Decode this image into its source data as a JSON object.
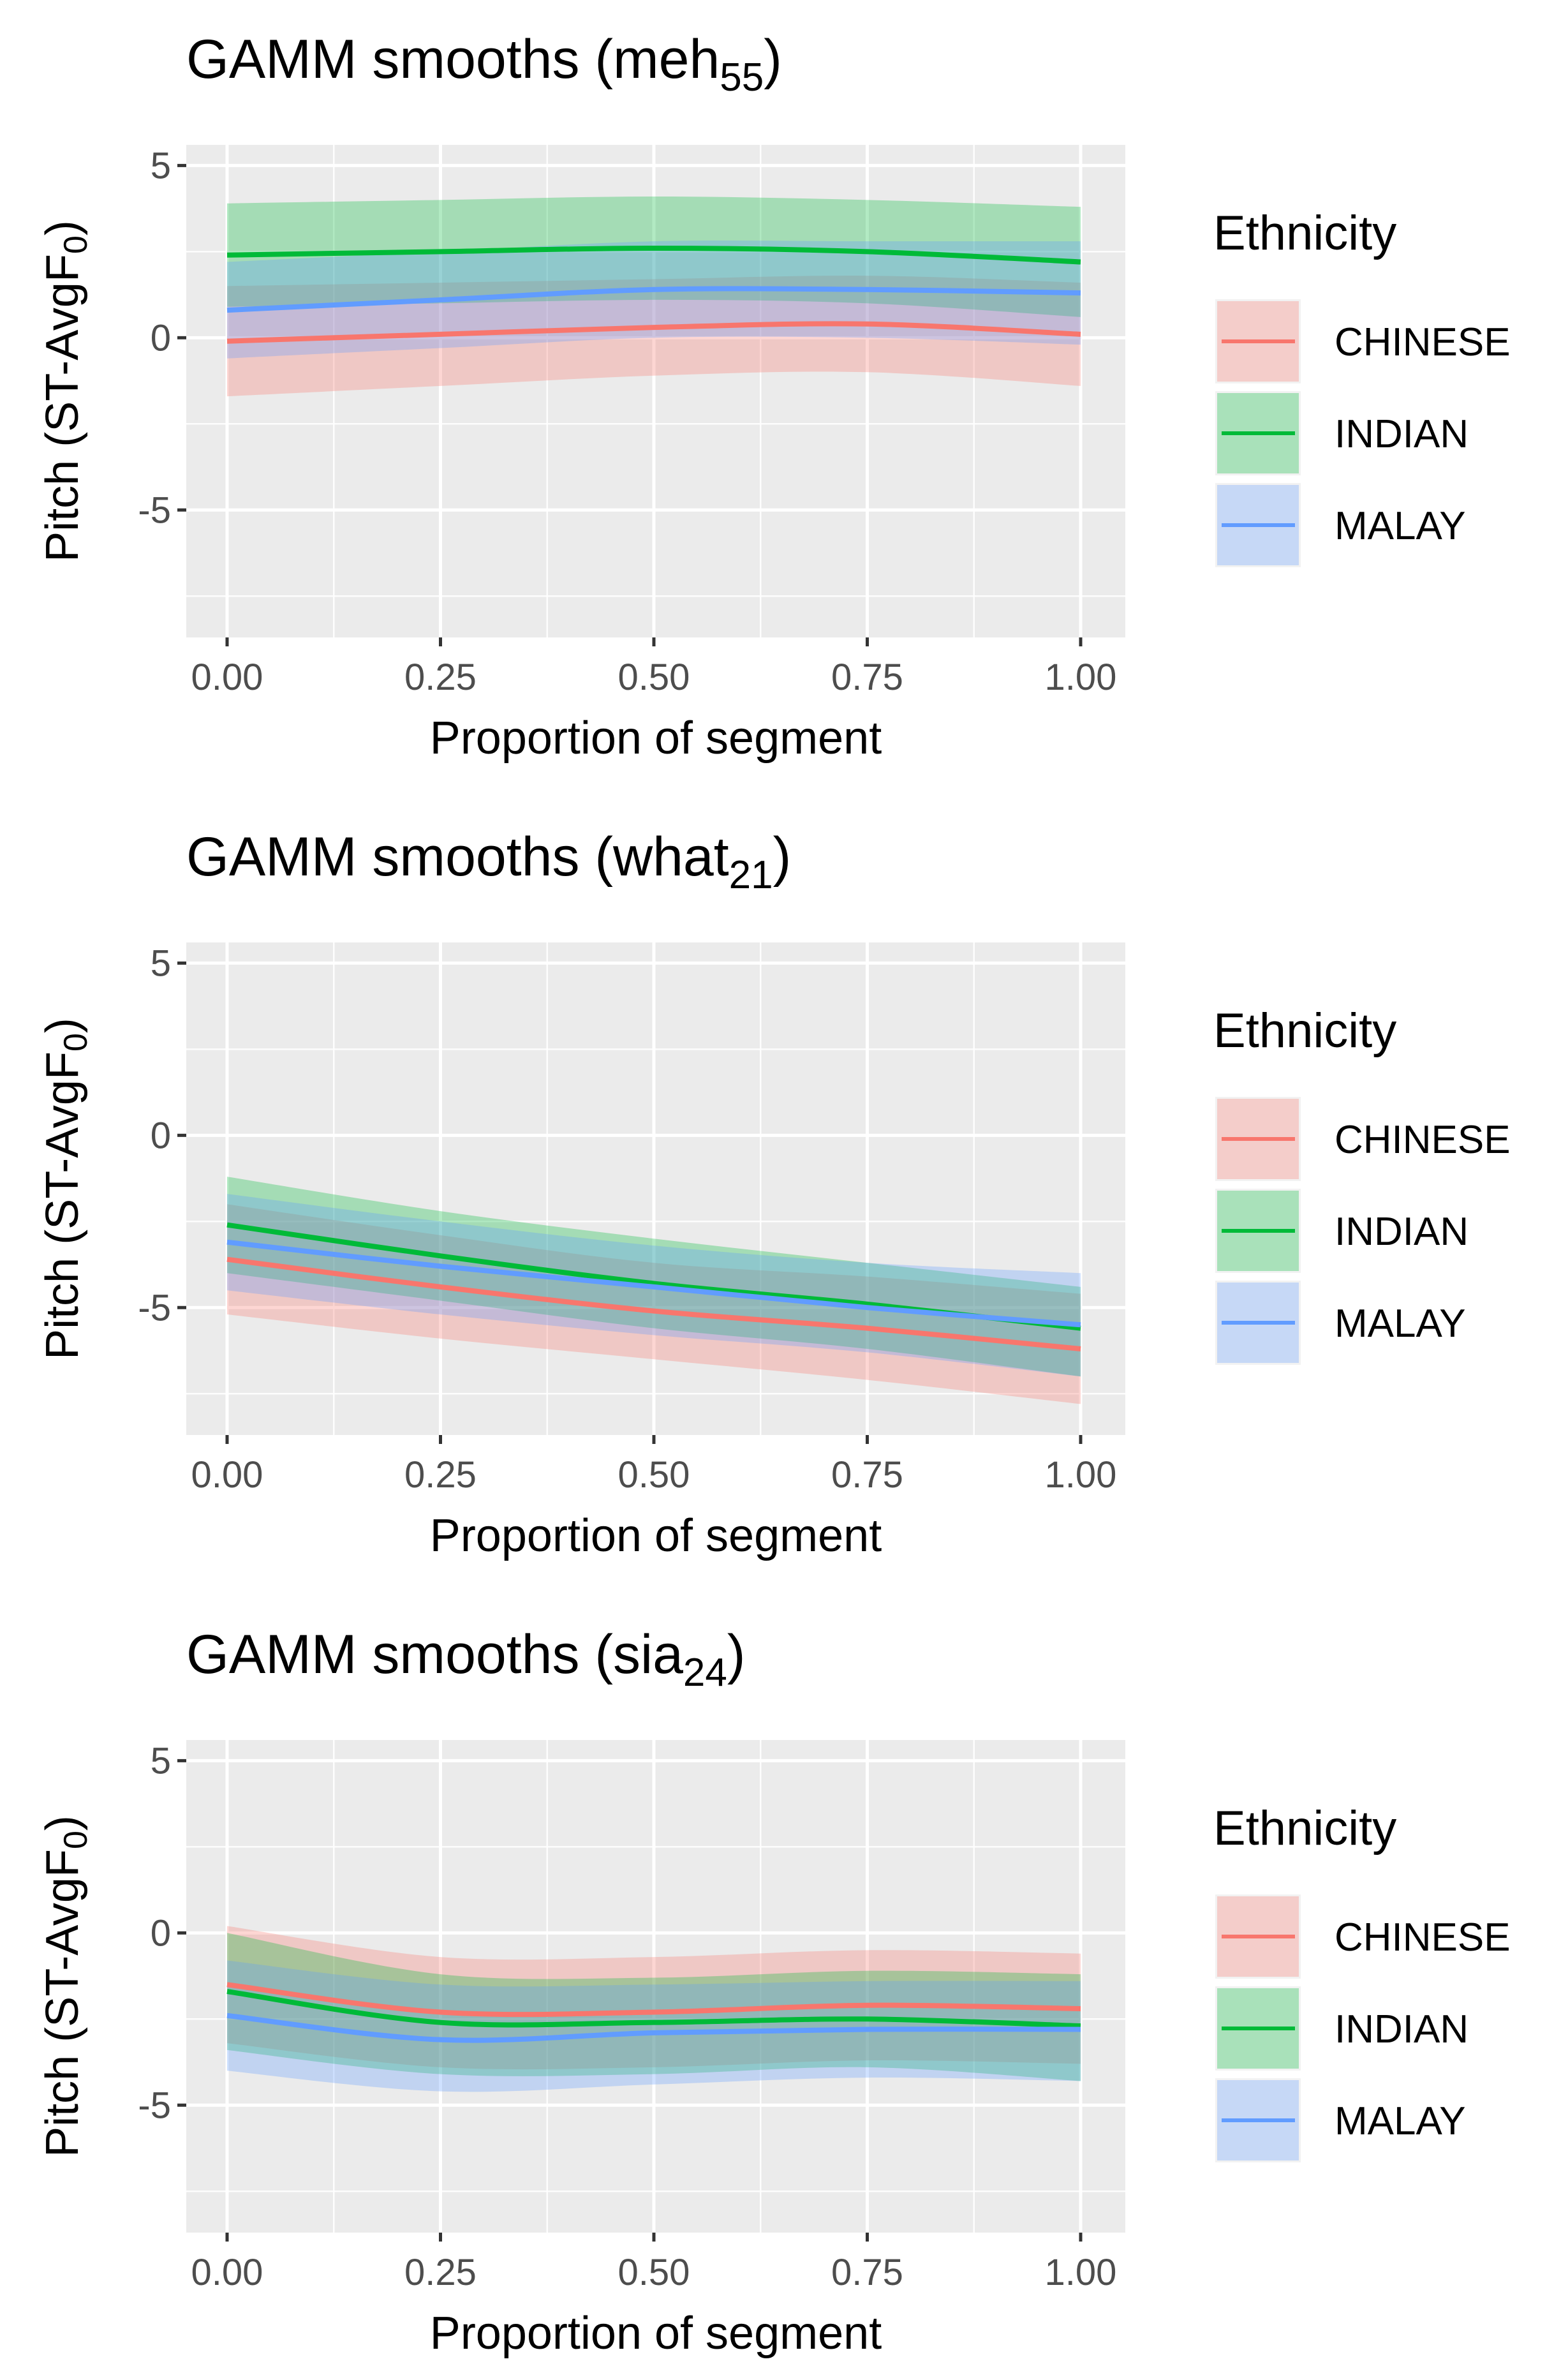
{
  "colors": {
    "CHINESE": "#F8766D",
    "INDIAN": "#00BA38",
    "MALAY": "#619CFF",
    "panel_bg": "#EBEBEB",
    "grid": "#FFFFFF"
  },
  "chart_data": [
    {
      "type": "line",
      "title": "GAMM smooths (meh",
      "title_sub": "55",
      "title_end": ")",
      "xlabel": "Proportion of segment",
      "ylabel": "Pitch (ST-AvgF",
      "ylabel_sub": "0",
      "ylabel_end": ")",
      "xlim": [
        0,
        1
      ],
      "ylim": [
        -8.7,
        5.6
      ],
      "xticks": [
        "0.00",
        "0.25",
        "0.50",
        "0.75",
        "1.00"
      ],
      "yticks": [
        "5",
        "0",
        "-5"
      ],
      "legend_title": "Ethnicity",
      "legend_position": "right",
      "x": [
        0,
        0.25,
        0.5,
        0.75,
        1
      ],
      "series": [
        {
          "name": "CHINESE",
          "fit": [
            -0.1,
            0.1,
            0.3,
            0.4,
            0.1
          ],
          "lower": [
            -1.7,
            -1.4,
            -1.1,
            -1.0,
            -1.4
          ],
          "upper": [
            1.5,
            1.6,
            1.7,
            1.8,
            1.6
          ]
        },
        {
          "name": "INDIAN",
          "fit": [
            2.4,
            2.5,
            2.6,
            2.5,
            2.2
          ],
          "lower": [
            0.9,
            1.0,
            1.1,
            1.0,
            0.6
          ],
          "upper": [
            3.9,
            4.0,
            4.1,
            4.0,
            3.8
          ]
        },
        {
          "name": "MALAY",
          "fit": [
            0.8,
            1.1,
            1.4,
            1.4,
            1.3
          ],
          "lower": [
            -0.6,
            -0.3,
            0.0,
            0.0,
            -0.2
          ],
          "upper": [
            2.2,
            2.5,
            2.8,
            2.8,
            2.8
          ]
        }
      ]
    },
    {
      "type": "line",
      "title": "GAMM smooths (what",
      "title_sub": "21",
      "title_end": ")",
      "xlabel": "Proportion of segment",
      "ylabel": "Pitch (ST-AvgF",
      "ylabel_sub": "0",
      "ylabel_end": ")",
      "xlim": [
        0,
        1
      ],
      "ylim": [
        -8.7,
        5.6
      ],
      "xticks": [
        "0.00",
        "0.25",
        "0.50",
        "0.75",
        "1.00"
      ],
      "yticks": [
        "5",
        "0",
        "-5"
      ],
      "legend_title": "Ethnicity",
      "legend_position": "right",
      "x": [
        0,
        0.25,
        0.5,
        0.75,
        1
      ],
      "series": [
        {
          "name": "CHINESE",
          "fit": [
            -3.6,
            -4.4,
            -5.1,
            -5.6,
            -6.2
          ],
          "lower": [
            -5.2,
            -5.9,
            -6.5,
            -7.1,
            -7.8
          ],
          "upper": [
            -2.0,
            -2.9,
            -3.7,
            -4.1,
            -4.6
          ]
        },
        {
          "name": "INDIAN",
          "fit": [
            -2.6,
            -3.5,
            -4.3,
            -4.9,
            -5.6
          ],
          "lower": [
            -4.0,
            -4.8,
            -5.6,
            -6.2,
            -7.0
          ],
          "upper": [
            -1.2,
            -2.2,
            -3.0,
            -3.7,
            -4.4
          ]
        },
        {
          "name": "MALAY",
          "fit": [
            -3.1,
            -3.8,
            -4.4,
            -5.0,
            -5.5
          ],
          "lower": [
            -4.5,
            -5.2,
            -5.8,
            -6.3,
            -7.0
          ],
          "upper": [
            -1.7,
            -2.5,
            -3.2,
            -3.7,
            -4.0
          ]
        }
      ]
    },
    {
      "type": "line",
      "title": "GAMM smooths (sia",
      "title_sub": "24",
      "title_end": ")",
      "xlabel": "Proportion of segment",
      "ylabel": "Pitch (ST-AvgF",
      "ylabel_sub": "0",
      "ylabel_end": ")",
      "xlim": [
        0,
        1
      ],
      "ylim": [
        -8.7,
        5.6
      ],
      "xticks": [
        "0.00",
        "0.25",
        "0.50",
        "0.75",
        "1.00"
      ],
      "yticks": [
        "5",
        "0",
        "-5"
      ],
      "legend_title": "Ethnicity",
      "legend_position": "right",
      "x": [
        0,
        0.25,
        0.5,
        0.75,
        1
      ],
      "series": [
        {
          "name": "CHINESE",
          "fit": [
            -1.5,
            -2.3,
            -2.3,
            -2.1,
            -2.2
          ],
          "lower": [
            -3.2,
            -3.9,
            -3.9,
            -3.7,
            -3.8
          ],
          "upper": [
            0.2,
            -0.7,
            -0.7,
            -0.5,
            -0.6
          ]
        },
        {
          "name": "INDIAN",
          "fit": [
            -1.7,
            -2.6,
            -2.6,
            -2.5,
            -2.7
          ],
          "lower": [
            -3.4,
            -4.1,
            -4.1,
            -3.9,
            -4.3
          ],
          "upper": [
            0.0,
            -1.2,
            -1.3,
            -1.1,
            -1.2
          ]
        },
        {
          "name": "MALAY",
          "fit": [
            -2.4,
            -3.1,
            -2.9,
            -2.8,
            -2.8
          ],
          "lower": [
            -4.0,
            -4.6,
            -4.4,
            -4.2,
            -4.3
          ],
          "upper": [
            -0.8,
            -1.5,
            -1.5,
            -1.4,
            -1.4
          ]
        }
      ]
    }
  ]
}
